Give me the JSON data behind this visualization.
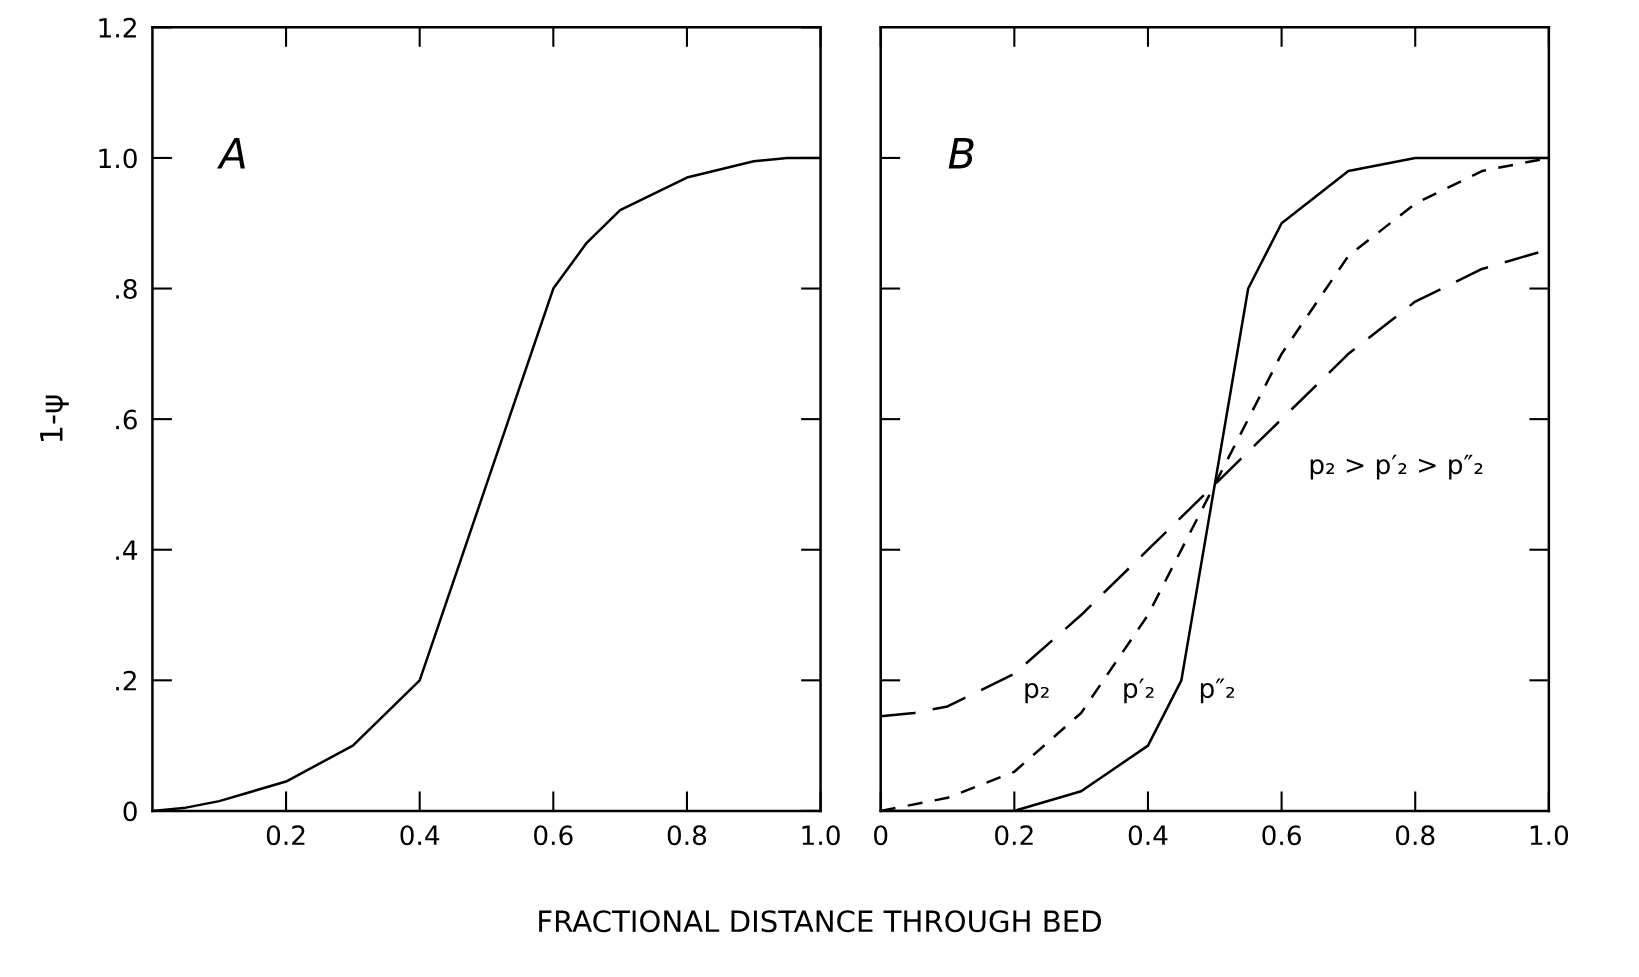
{
  "chart_data": [
    {
      "type": "line",
      "title": "A",
      "ylabel": "1-ψ",
      "xlabel": "FRACTIONAL DISTANCE THROUGH BED",
      "xlim": [
        0,
        1.0
      ],
      "ylim": [
        0,
        1.2
      ],
      "xticks": [
        0.2,
        0.4,
        0.6,
        0.8,
        {
          "value": 1.0,
          "label": "1.0"
        }
      ],
      "yticks": [
        0,
        {
          "value": 0.2,
          "label": ".2"
        },
        {
          "value": 0.4,
          "label": ".4"
        },
        {
          "value": 0.6,
          "label": ".6"
        },
        {
          "value": 0.8,
          "label": ".8"
        },
        {
          "value": 1.0,
          "label": "1.0"
        },
        {
          "value": 1.2,
          "label": "1.2"
        }
      ],
      "grid": false,
      "legend": false,
      "series": [
        {
          "color": "#000000",
          "line_style": "solid",
          "x": [
            0,
            0.05,
            0.1,
            0.2,
            0.3,
            0.4,
            0.5,
            0.6,
            0.65,
            0.7,
            0.8,
            0.9,
            0.95,
            1.0
          ],
          "values": [
            0,
            0.005,
            0.015,
            0.045,
            0.1,
            0.2,
            0.5,
            0.8,
            0.87,
            0.92,
            0.97,
            0.995,
            1.0,
            1.0
          ]
        }
      ]
    },
    {
      "type": "line",
      "title": "B",
      "annotations": [
        "p₂ > p′₂ > p″₂"
      ],
      "xlim": [
        0,
        1.0
      ],
      "ylim": [
        0,
        1.2
      ],
      "tick_labels": "x",
      "xticks": [
        0,
        0.2,
        0.4,
        0.6,
        0.8,
        {
          "value": 1.0,
          "label": "1.0"
        }
      ],
      "yticks": [
        {
          "value": 0.2,
          "label": null
        },
        {
          "value": 0.4,
          "label": null
        },
        {
          "value": 0.6,
          "label": null
        },
        {
          "value": 0.8,
          "label": null
        },
        {
          "value": 1.0,
          "label": null
        }
      ],
      "grid": false,
      "legend": false,
      "series": [
        {
          "name": "p₂",
          "color": "#000000",
          "line_style": "long_dashed",
          "x": [
            0,
            0.05,
            0.1,
            0.2,
            0.3,
            0.4,
            0.5,
            0.6,
            0.7,
            0.8,
            0.9,
            1.0
          ],
          "values": [
            0.145,
            0.15,
            0.16,
            0.21,
            0.3,
            0.4,
            0.5,
            0.6,
            0.7,
            0.78,
            0.83,
            0.86
          ]
        },
        {
          "name": "p′₂",
          "color": "#000000",
          "line_style": "dashed",
          "x": [
            0,
            0.1,
            0.2,
            0.3,
            0.4,
            0.5,
            0.6,
            0.7,
            0.8,
            0.9,
            1.0
          ],
          "values": [
            0,
            0.02,
            0.06,
            0.15,
            0.3,
            0.5,
            0.7,
            0.85,
            0.93,
            0.98,
            1.0
          ]
        },
        {
          "name": "p″₂",
          "color": "#000000",
          "line_style": "solid",
          "x": [
            0,
            0.2,
            0.3,
            0.4,
            0.45,
            0.5,
            0.55,
            0.6,
            0.7,
            0.8,
            1.0
          ],
          "values": [
            0,
            0,
            0.03,
            0.1,
            0.2,
            0.5,
            0.8,
            0.9,
            0.98,
            1.0,
            1.0
          ]
        }
      ]
    }
  ]
}
